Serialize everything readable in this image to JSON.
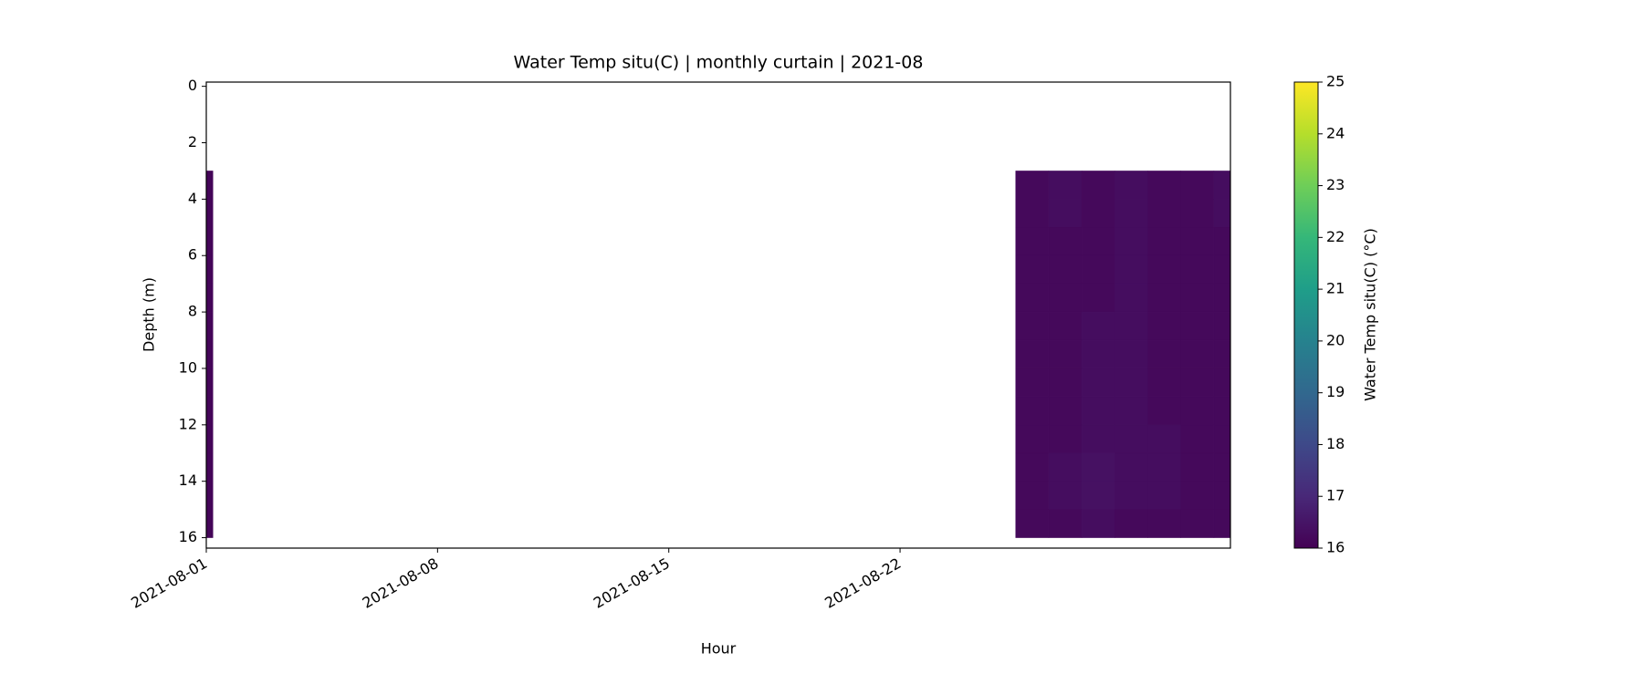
{
  "chart_data": {
    "type": "curtain",
    "title": "Water Temp situ(C) | monthly curtain | 2021-08",
    "x_label": "Hour",
    "y_label": "Depth (m)",
    "colorbar_label": "Water Temp situ(C) (°C)",
    "colormap": "viridis",
    "x": [
      1,
      1.2,
      25.5,
      26.5,
      27.5,
      28.5,
      29.5,
      30.5,
      31.5,
      32
    ],
    "y": [
      3,
      4,
      5,
      6,
      7,
      8,
      9,
      10,
      11,
      12,
      13,
      14,
      15,
      16
    ],
    "values": [
      [
        16.1,
        null,
        16.2,
        16.3,
        16.2,
        16.3,
        16.2,
        16.2,
        16.3
      ],
      [
        16.1,
        null,
        16.2,
        16.3,
        16.2,
        16.3,
        16.2,
        16.2,
        16.3
      ],
      [
        16.1,
        null,
        16.2,
        16.2,
        16.2,
        16.3,
        16.2,
        16.2,
        16.2
      ],
      [
        16.1,
        null,
        16.2,
        16.2,
        16.2,
        16.3,
        16.2,
        16.2,
        16.2
      ],
      [
        16.1,
        null,
        16.2,
        16.2,
        16.2,
        16.3,
        16.2,
        16.2,
        16.2
      ],
      [
        16.1,
        null,
        16.2,
        16.2,
        16.3,
        16.3,
        16.2,
        16.2,
        16.2
      ],
      [
        16.1,
        null,
        16.2,
        16.2,
        16.3,
        16.3,
        16.2,
        16.2,
        16.2
      ],
      [
        16.1,
        null,
        16.2,
        16.2,
        16.3,
        16.3,
        16.2,
        16.2,
        16.2
      ],
      [
        16.1,
        null,
        16.2,
        16.2,
        16.3,
        16.3,
        16.2,
        16.2,
        16.2
      ],
      [
        16.1,
        null,
        16.2,
        16.2,
        16.3,
        16.3,
        16.3,
        16.2,
        16.2
      ],
      [
        16.1,
        null,
        16.2,
        16.3,
        16.4,
        16.3,
        16.3,
        16.2,
        16.2
      ],
      [
        16.1,
        null,
        16.2,
        16.3,
        16.4,
        16.3,
        16.3,
        16.2,
        16.2
      ],
      [
        16.1,
        null,
        16.2,
        16.2,
        16.3,
        16.2,
        16.2,
        16.2,
        16.2
      ]
    ],
    "xlim": [
      1,
      32
    ],
    "xticks": [
      {
        "value": 1,
        "label": "2021-08-01"
      },
      {
        "value": 8,
        "label": "2021-08-08"
      },
      {
        "value": 15,
        "label": "2021-08-15"
      },
      {
        "value": 22,
        "label": "2021-08-22"
      }
    ],
    "ylim": [
      -0.15,
      16.37
    ],
    "invert_y": true,
    "yticks": [
      0,
      2,
      4,
      6,
      8,
      10,
      12,
      14,
      16
    ],
    "clim": [
      16,
      25
    ],
    "cticks": [
      16,
      17,
      18,
      19,
      20,
      21,
      22,
      23,
      24,
      25
    ]
  }
}
